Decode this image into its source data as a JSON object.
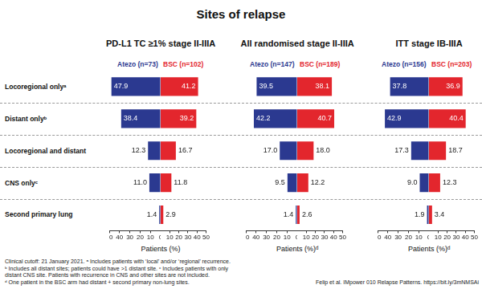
{
  "title": "Sites of relapse",
  "chart_data": [
    {
      "type": "bar",
      "orientation": "horizontal",
      "title": "PD-L1 TC ≥1% stage II-IIIA",
      "categories": [
        "Locoregional onlyᵃ",
        "Distant onlyᵇ",
        "Locoregional and distant",
        "CNS onlyᶜ",
        "Second primary lung"
      ],
      "series": [
        {
          "name": "Atezo (n=73)",
          "color": "#2b3990",
          "values": [
            47.9,
            38.4,
            12.3,
            11.0,
            1.4
          ],
          "value_labels": [
            "47.9",
            "38.4",
            "12.3",
            "11.0",
            "1.4"
          ]
        },
        {
          "name": "BSC (n=102)",
          "color": "#e3262d",
          "axis": "x2",
          "values": [
            41.2,
            39.2,
            16.7,
            11.8,
            2.9
          ],
          "value_labels": [
            "41.2",
            "39.2",
            "16.7",
            "11.8",
            "2.9"
          ]
        }
      ],
      "xlim": [
        0,
        50
      ],
      "xticks": [
        0,
        10,
        20,
        30,
        40,
        50
      ],
      "x2lim": [
        0,
        50
      ],
      "x2ticks": [
        10,
        20,
        30,
        40,
        50
      ],
      "x_label": "Patients (%)",
      "grid": false,
      "legend": "top",
      "data_labels": true
    },
    {
      "type": "bar",
      "orientation": "horizontal",
      "title": "All randomised stage II-IIIA",
      "categories": [
        "Locoregional onlyᵃ",
        "Distant onlyᵇ",
        "Locoregional and distant",
        "CNS onlyᶜ",
        "Second primary lung"
      ],
      "series": [
        {
          "name": "Atezo (n=147)",
          "color": "#2b3990",
          "values": [
            39.5,
            42.2,
            17.0,
            9.5,
            1.4
          ],
          "value_labels": [
            "39.5",
            "42.2",
            "17.0",
            "9.5",
            "1.4"
          ]
        },
        {
          "name": "BSC (n=189)",
          "color": "#e3262d",
          "axis": "x2",
          "values": [
            38.1,
            40.7,
            18.0,
            12.2,
            2.6
          ],
          "value_labels": [
            "38.1",
            "40.7",
            "18.0",
            "12.2",
            "2.6"
          ]
        }
      ],
      "xlim": [
        0,
        50
      ],
      "xticks": [
        0,
        10,
        20,
        30,
        40,
        50
      ],
      "x2lim": [
        0,
        50
      ],
      "x2ticks": [
        10,
        20,
        30,
        40,
        50
      ],
      "x_label": "Patients (%)ᵈ",
      "grid": false,
      "legend": "top",
      "data_labels": true
    },
    {
      "type": "bar",
      "orientation": "horizontal",
      "title": "ITT stage IB-IIIA",
      "categories": [
        "Locoregional onlyᵃ",
        "Distant onlyᵇ",
        "Locoregional and distant",
        "CNS onlyᶜ",
        "Second primary lung"
      ],
      "series": [
        {
          "name": "Atezo (n=156)",
          "color": "#2b3990",
          "values": [
            37.8,
            42.9,
            17.3,
            9.0,
            1.9
          ],
          "value_labels": [
            "37.8",
            "42.9",
            "17.3",
            "9.0",
            "1.9"
          ]
        },
        {
          "name": "BSC (n=203)",
          "color": "#e3262d",
          "axis": "x2",
          "values": [
            36.9,
            40.4,
            18.7,
            12.3,
            3.4
          ],
          "value_labels": [
            "36.9",
            "40.4",
            "18.7",
            "12.3",
            "3.4"
          ]
        }
      ],
      "xlim": [
        0,
        50
      ],
      "xticks": [
        0,
        10,
        20,
        30,
        40,
        50
      ],
      "x2lim": [
        0,
        50
      ],
      "x2ticks": [
        10,
        20,
        30,
        40,
        50
      ],
      "x_label": "Patients (%)ᵈ",
      "grid": false,
      "legend": "top",
      "data_labels": true
    }
  ],
  "footnotes": [
    "Clinical cutoff: 21 January 2021. ᵃ Includes patients with ‘local’ and/or ‘regional’ recurrence.",
    "ᵇ Includes all distant sites; patients could have >1 distant site. ᶜ Includes patients with only",
    "distant CNS site. Patients with recurrence in CNS and other sites are not included.",
    "ᵈ One patient in the BSC arm had distant + second primary non-lung sites."
  ],
  "source": "Felip et al. IMpower 010 Relapse Patterns. https://bit.ly/3mNMSAi"
}
